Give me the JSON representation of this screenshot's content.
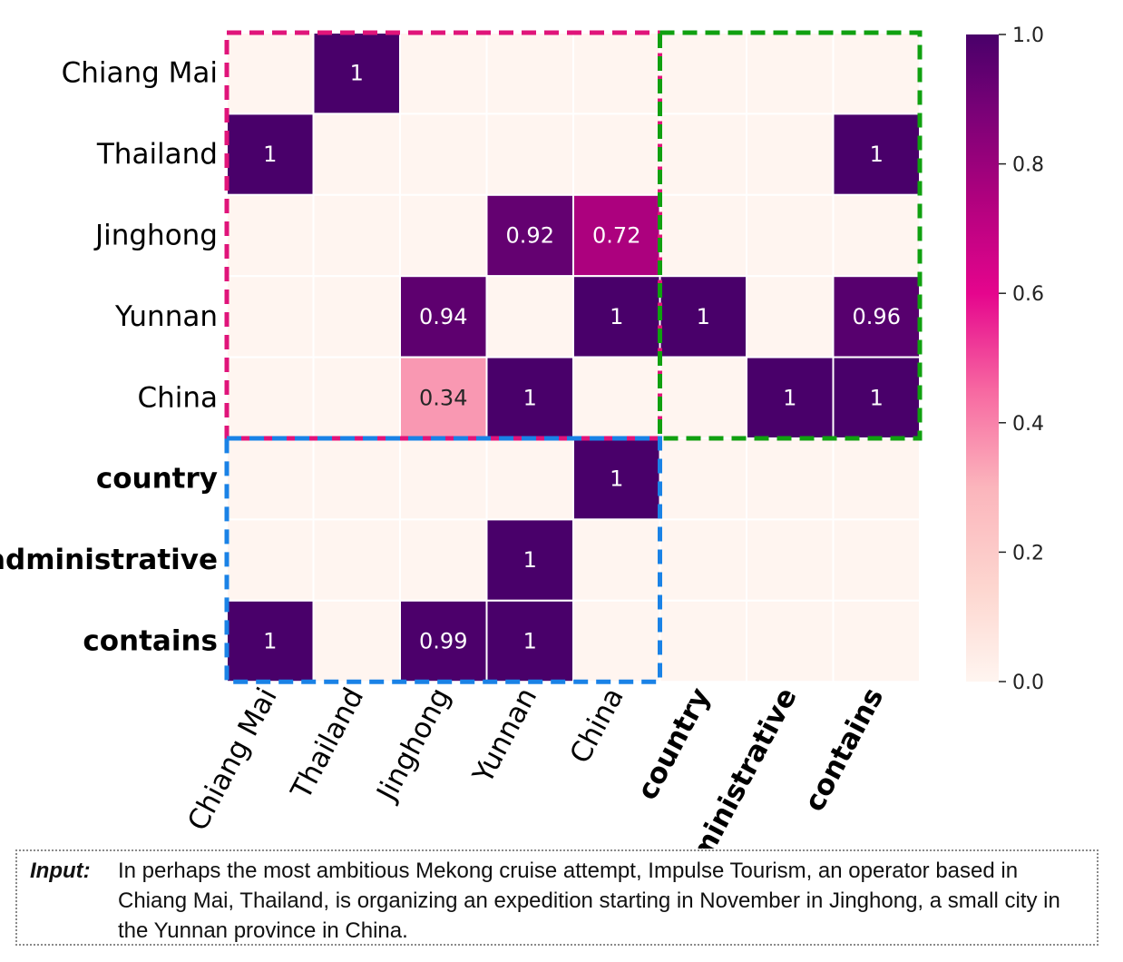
{
  "chart_data": {
    "type": "heatmap",
    "row_labels": [
      "Chiang Mai",
      "Thailand",
      "Jinghong",
      "Yunnan",
      "China",
      "country",
      "administrative",
      "contains"
    ],
    "col_labels": [
      "Chiang Mai",
      "Thailand",
      "Jinghong",
      "Yunnan",
      "China",
      "country",
      "administrative",
      "contains"
    ],
    "bold_labels": [
      "country",
      "administrative",
      "contains"
    ],
    "values": [
      [
        0,
        1,
        0,
        0,
        0,
        0,
        0,
        0
      ],
      [
        1,
        0,
        0,
        0,
        0,
        0,
        0,
        1
      ],
      [
        0,
        0,
        0,
        0.92,
        0.72,
        0,
        0,
        0
      ],
      [
        0,
        0,
        0.94,
        0,
        1,
        1,
        0,
        0.96
      ],
      [
        0,
        0,
        0.34,
        1,
        0,
        0,
        1,
        1
      ],
      [
        0,
        0,
        0,
        0,
        1,
        0,
        0,
        0
      ],
      [
        0,
        0,
        0,
        1,
        0,
        0,
        0,
        0
      ],
      [
        1,
        0,
        0.99,
        1,
        0,
        0,
        0,
        0
      ]
    ],
    "cell_labels": [
      [
        "",
        "1",
        "",
        "",
        "",
        "",
        "",
        ""
      ],
      [
        "1",
        "",
        "",
        "",
        "",
        "",
        "",
        "1"
      ],
      [
        "",
        "",
        "",
        "0.92",
        "0.72",
        "",
        "",
        ""
      ],
      [
        "",
        "",
        "0.94",
        "",
        "1",
        "1",
        "",
        "0.96"
      ],
      [
        "",
        "",
        "0.34",
        "1",
        "",
        "",
        "1",
        "1"
      ],
      [
        "",
        "",
        "",
        "",
        "1",
        "",
        "",
        ""
      ],
      [
        "",
        "",
        "",
        "1",
        "",
        "",
        "",
        ""
      ],
      [
        "1",
        "",
        "0.99",
        "1",
        "",
        "",
        "",
        ""
      ]
    ],
    "colorbar": {
      "range": [
        0.0,
        1.0
      ],
      "ticks": [
        "0.0",
        "0.2",
        "0.4",
        "0.6",
        "0.8",
        "1.0"
      ],
      "colormap": [
        "#fff5f0",
        "#fdd7d0",
        "#fbb5bc",
        "#f768a1",
        "#e5058d",
        "#ae017e",
        "#7a0177",
        "#49006a"
      ]
    },
    "highlight_regions": [
      {
        "name": "entity-entity",
        "rows": [
          0,
          4
        ],
        "cols": [
          0,
          4
        ],
        "color": "#e0147a"
      },
      {
        "name": "entity-relation",
        "rows": [
          0,
          4
        ],
        "cols": [
          5,
          7
        ],
        "color": "#10a010"
      },
      {
        "name": "relation-entity",
        "rows": [
          5,
          7
        ],
        "cols": [
          0,
          4
        ],
        "color": "#1a82e6"
      }
    ]
  },
  "input": {
    "label": "Input:",
    "text": "In perhaps the most ambitious Mekong cruise attempt, Impulse Tourism, an operator based in Chiang Mai, Thailand, is organizing an expedition starting in November in Jinghong, a small city in the Yunnan province in China."
  }
}
